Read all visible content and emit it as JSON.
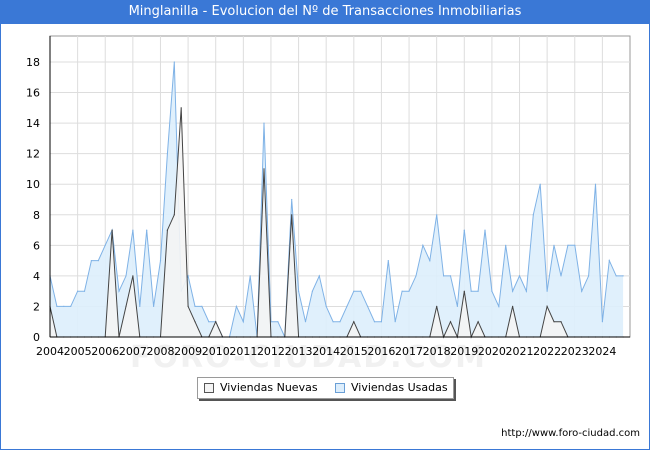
{
  "window": {
    "title": "Minglanilla - Evolucion del Nº de Transacciones Inmobiliarias"
  },
  "watermark": "FORO-CIUDAD.COM",
  "footer": {
    "url": "http://www.foro-ciudad.com"
  },
  "colors": {
    "nuevas_fill": "#f4f4f4",
    "nuevas_line": "#444444",
    "usadas_fill": "#ddeefc",
    "usadas_line": "#7fb2e6",
    "grid": "#dddddd",
    "title_bg": "#3a78d6"
  },
  "chart_data": {
    "type": "area",
    "title": "Minglanilla - Evolucion del Nº de Transacciones Inmobiliarias",
    "xlabel": "",
    "ylabel": "",
    "xlim": [
      2004,
      2025
    ],
    "ylim": [
      0,
      20
    ],
    "x_ticks": [
      2004,
      2005,
      2006,
      2007,
      2008,
      2009,
      2010,
      2011,
      2012,
      2013,
      2014,
      2015,
      2016,
      2017,
      2018,
      2019,
      2020,
      2021,
      2022,
      2023,
      2024
    ],
    "y_ticks": [
      0,
      2,
      4,
      6,
      8,
      10,
      12,
      14,
      16,
      18
    ],
    "grid": true,
    "legend_position": "bottom-center",
    "series": [
      {
        "name": "Viviendas Usadas",
        "x": [
          2004.0,
          2004.25,
          2004.5,
          2004.75,
          2005.0,
          2005.25,
          2005.5,
          2005.75,
          2006.0,
          2006.25,
          2006.5,
          2006.75,
          2007.0,
          2007.25,
          2007.5,
          2007.75,
          2008.0,
          2008.25,
          2008.5,
          2008.75,
          2009.0,
          2009.25,
          2009.5,
          2009.75,
          2010.0,
          2010.25,
          2010.5,
          2010.75,
          2011.0,
          2011.25,
          2011.5,
          2011.75,
          2012.0,
          2012.25,
          2012.5,
          2012.75,
          2013.0,
          2013.25,
          2013.5,
          2013.75,
          2014.0,
          2014.25,
          2014.5,
          2014.75,
          2015.0,
          2015.25,
          2015.5,
          2015.75,
          2016.0,
          2016.25,
          2016.5,
          2016.75,
          2017.0,
          2017.25,
          2017.5,
          2017.75,
          2018.0,
          2018.25,
          2018.5,
          2018.75,
          2019.0,
          2019.25,
          2019.5,
          2019.75,
          2020.0,
          2020.25,
          2020.5,
          2020.75,
          2021.0,
          2021.25,
          2021.5,
          2021.75,
          2022.0,
          2022.25,
          2022.5,
          2022.75,
          2023.0,
          2023.25,
          2023.5,
          2023.75,
          2024.0,
          2024.25,
          2024.5,
          2024.75
        ],
        "values": [
          4,
          2,
          2,
          2,
          3,
          3,
          5,
          5,
          6,
          7,
          3,
          4,
          7,
          2,
          7,
          2,
          5,
          12,
          18,
          3,
          4,
          2,
          2,
          1,
          1,
          0,
          0,
          2,
          1,
          4,
          0,
          14,
          1,
          1,
          0,
          9,
          3,
          1,
          3,
          4,
          2,
          1,
          1,
          2,
          3,
          3,
          2,
          1,
          1,
          5,
          1,
          3,
          3,
          4,
          6,
          5,
          8,
          4,
          4,
          2,
          7,
          3,
          3,
          7,
          3,
          2,
          6,
          3,
          4,
          3,
          8,
          10,
          3,
          6,
          4,
          6,
          6,
          3,
          4,
          10,
          1,
          5,
          4,
          4
        ]
      },
      {
        "name": "Viviendas Nuevas",
        "x": [
          2004.0,
          2004.25,
          2004.5,
          2004.75,
          2005.0,
          2005.25,
          2005.5,
          2005.75,
          2006.0,
          2006.25,
          2006.5,
          2006.75,
          2007.0,
          2007.25,
          2007.5,
          2007.75,
          2008.0,
          2008.25,
          2008.5,
          2008.75,
          2009.0,
          2009.25,
          2009.5,
          2009.75,
          2010.0,
          2010.25,
          2010.5,
          2010.75,
          2011.0,
          2011.25,
          2011.5,
          2011.75,
          2012.0,
          2012.25,
          2012.5,
          2012.75,
          2013.0,
          2013.25,
          2013.5,
          2013.75,
          2014.0,
          2014.25,
          2014.5,
          2014.75,
          2015.0,
          2015.25,
          2015.5,
          2015.75,
          2016.0,
          2016.25,
          2016.5,
          2016.75,
          2017.0,
          2017.25,
          2017.5,
          2017.75,
          2018.0,
          2018.25,
          2018.5,
          2018.75,
          2019.0,
          2019.25,
          2019.5,
          2019.75,
          2020.0,
          2020.25,
          2020.5,
          2020.75,
          2021.0,
          2021.25,
          2021.5,
          2021.75,
          2022.0,
          2022.25,
          2022.5,
          2022.75,
          2023.0,
          2023.25,
          2023.5,
          2023.75,
          2024.0,
          2024.25,
          2024.5,
          2024.75
        ],
        "values": [
          2,
          0,
          0,
          0,
          0,
          0,
          0,
          0,
          0,
          7,
          0,
          2,
          4,
          0,
          0,
          0,
          0,
          7,
          8,
          15,
          2,
          1,
          0,
          0,
          1,
          0,
          0,
          0,
          0,
          0,
          0,
          11,
          0,
          0,
          0,
          8,
          0,
          0,
          0,
          0,
          0,
          0,
          0,
          0,
          1,
          0,
          0,
          0,
          0,
          0,
          0,
          0,
          0,
          0,
          0,
          0,
          2,
          0,
          1,
          0,
          3,
          0,
          1,
          0,
          0,
          0,
          0,
          2,
          0,
          0,
          0,
          0,
          2,
          1,
          1,
          0,
          0,
          0,
          0,
          0,
          0,
          0,
          0,
          0
        ]
      }
    ],
    "legend": [
      "Viviendas Nuevas",
      "Viviendas Usadas"
    ]
  }
}
